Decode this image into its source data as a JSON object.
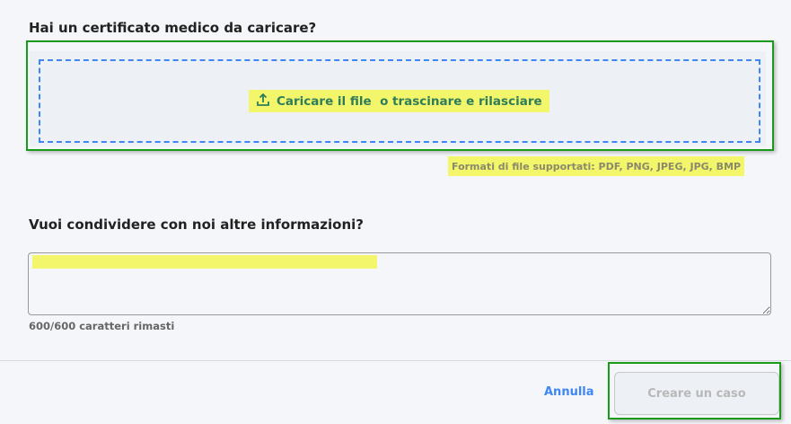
{
  "certificate": {
    "question": "Hai un certificato medico da caricare?",
    "upload_label": "Caricare il file  o trascinare e rilasciare",
    "upload_icon": "upload-icon",
    "formats": "Formati di file supportati: PDF, PNG, JPEG, JPG, BMP"
  },
  "info": {
    "question": "Vuoi condividere con noi altre informazioni?",
    "value": "",
    "counter": "600/600 caratteri rimasti"
  },
  "footer": {
    "cancel_label": "Annulla",
    "create_label": "Creare un caso"
  },
  "colors": {
    "accent": "#3f86f5",
    "upload_text": "#2e7d5a",
    "highlight": "#f3f56a"
  }
}
